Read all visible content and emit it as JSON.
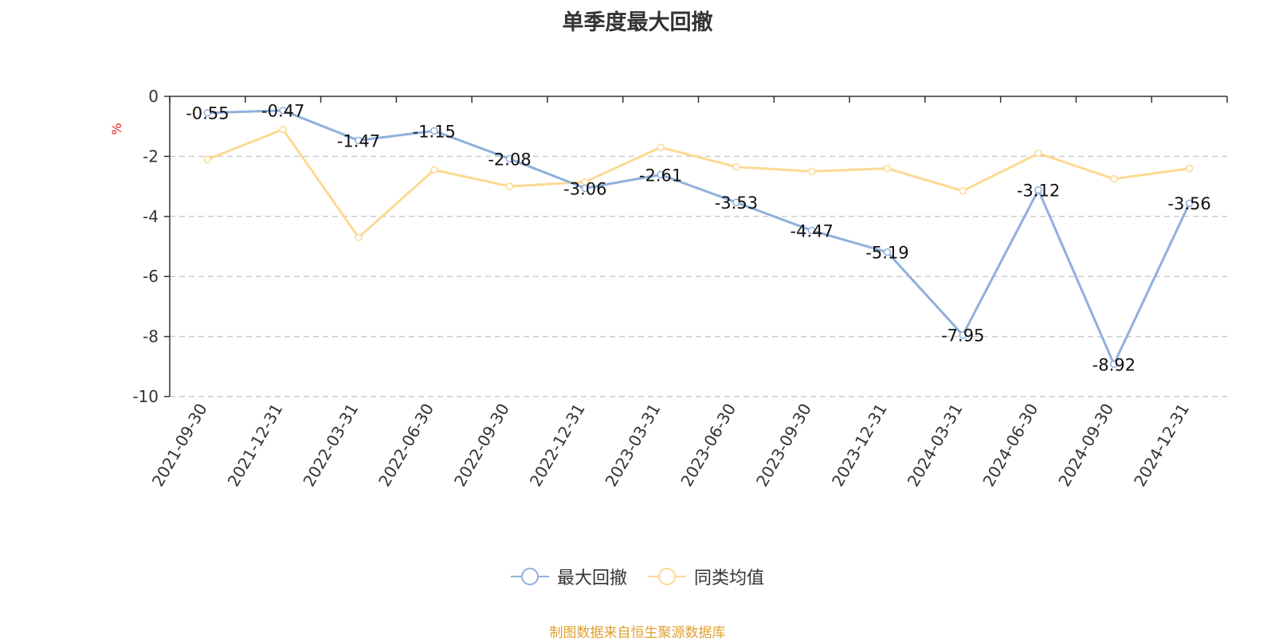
{
  "page_title": "单季度最大回撤",
  "source_note": "制图数据来自恒生聚源数据库",
  "colors": {
    "series1": "#8fb0dc",
    "series2": "#fcd993",
    "unit": "#e02020",
    "axis": "#333333",
    "grid": "#cccccc"
  },
  "chart_data": {
    "type": "line",
    "title": "单季度最大回撤",
    "ylabel": "%",
    "xlabel": "",
    "ylim": [
      -10,
      0
    ],
    "yticks": [
      0,
      -2,
      -4,
      -6,
      -8,
      -10
    ],
    "grid": true,
    "legend_position": "bottom",
    "categories": [
      "2021-09-30",
      "2021-12-31",
      "2022-03-31",
      "2022-06-30",
      "2022-09-30",
      "2022-12-31",
      "2023-03-31",
      "2023-06-30",
      "2023-09-30",
      "2023-12-31",
      "2024-03-31",
      "2024-06-30",
      "2024-09-30",
      "2024-12-31"
    ],
    "series": [
      {
        "name": "最大回撤",
        "values": [
          -0.55,
          -0.47,
          -1.47,
          -1.15,
          -2.08,
          -3.06,
          -2.61,
          -3.53,
          -4.47,
          -5.19,
          -7.95,
          -3.12,
          -8.92,
          -3.56
        ],
        "show_labels": true
      },
      {
        "name": "同类均值",
        "values": [
          -2.1,
          -1.1,
          -4.7,
          -2.45,
          -3.0,
          -2.85,
          -1.7,
          -2.35,
          -2.5,
          -2.4,
          -3.15,
          -1.9,
          -2.75,
          -2.4
        ],
        "show_labels": false
      }
    ]
  }
}
